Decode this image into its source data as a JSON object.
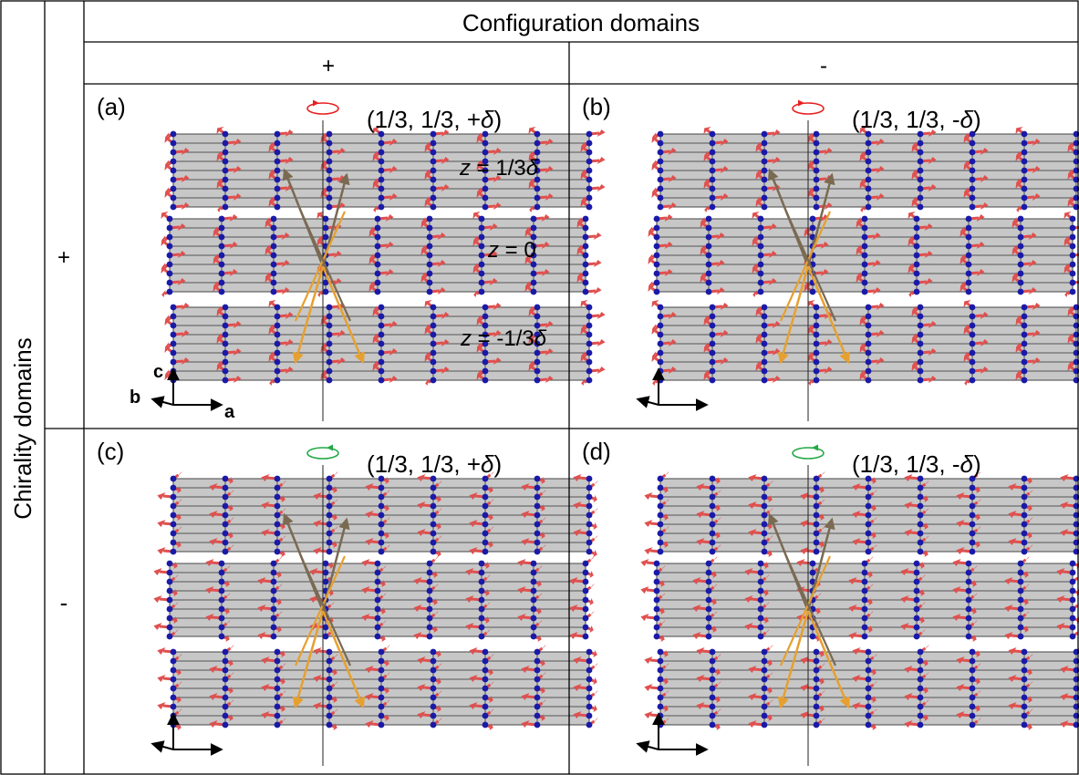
{
  "header": {
    "configuration_domains": "Configuration domains",
    "chirality_domains": "Chirality domains"
  },
  "columns": {
    "plus": "+",
    "minus": "-"
  },
  "rows": {
    "plus": "+",
    "minus": "-"
  },
  "panels": [
    {
      "id": "a",
      "label": "(a)",
      "wavevector_prefix": "(1/3, 1/3, ",
      "wavevector_sign": "+",
      "wavevector_symbol": "δ",
      "wavevector_suffix": ")",
      "rotation": "clockwise",
      "rotation_color": "#e82020"
    },
    {
      "id": "b",
      "label": "(b)",
      "wavevector_prefix": "(1/3, 1/3, ",
      "wavevector_sign": "-",
      "wavevector_symbol": "δ",
      "wavevector_suffix": ")",
      "rotation": "clockwise",
      "rotation_color": "#e82020"
    },
    {
      "id": "c",
      "label": "(c)",
      "wavevector_prefix": "(1/3, 1/3, ",
      "wavevector_sign": "+",
      "wavevector_symbol": "δ",
      "wavevector_suffix": ")",
      "rotation": "counterclockwise",
      "rotation_color": "#22a845"
    },
    {
      "id": "d",
      "label": "(d)",
      "wavevector_prefix": "(1/3, 1/3, ",
      "wavevector_sign": "-",
      "wavevector_symbol": "δ",
      "wavevector_suffix": ")",
      "rotation": "counterclockwise",
      "rotation_color": "#22a845"
    }
  ],
  "layer_labels": {
    "top": {
      "var": "z",
      "eq": " = 1/3",
      "delta": "δ"
    },
    "middle": {
      "var": "z",
      "eq": " = 0"
    },
    "bottom": {
      "var": "z",
      "eq": " = -1/3",
      "delta": "δ"
    }
  },
  "axes": {
    "a": "a",
    "b": "b",
    "c": "c"
  },
  "colors": {
    "plane": "#bdbdbd",
    "atom": "#1a1aa8",
    "spin": "#e0504e",
    "exchange_dark": "#7a6a52",
    "exchange_orange": "#e6a030"
  }
}
